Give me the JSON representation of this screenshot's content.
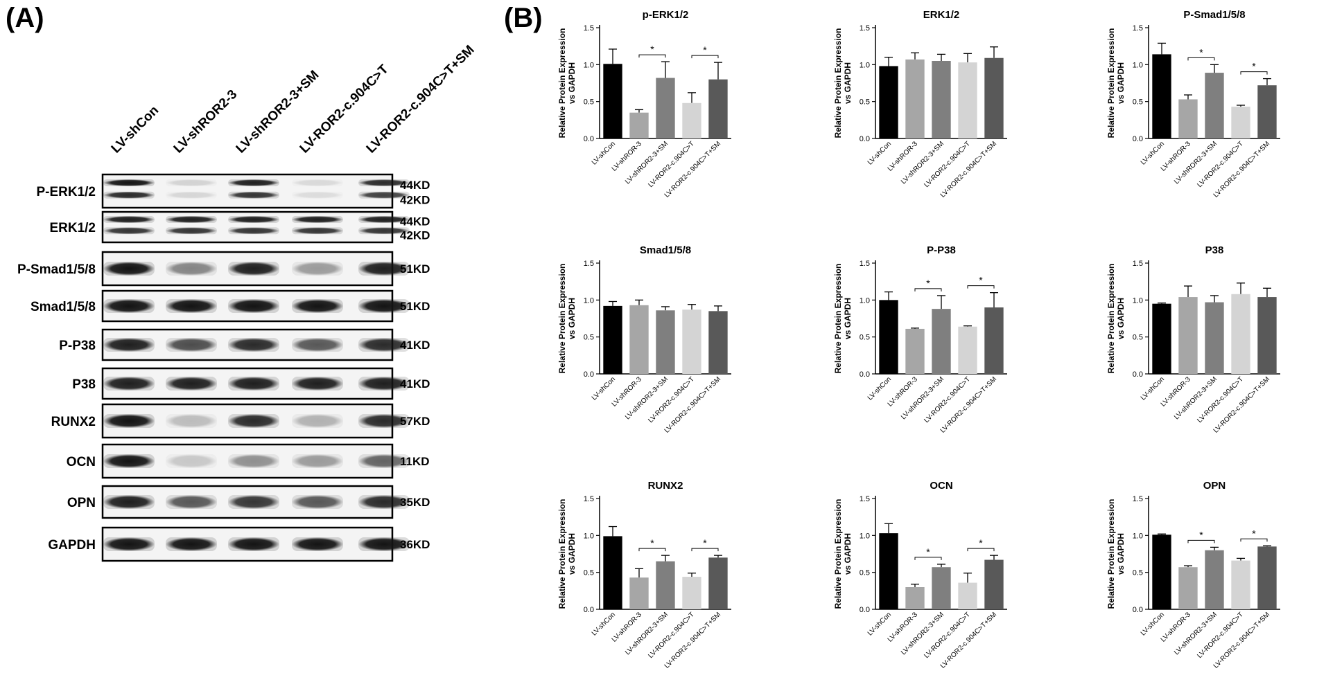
{
  "panel_a": {
    "label": "(A)",
    "lanes": [
      "LV-shCon",
      "LV-shROR2-3",
      "LV-shROR2-3+SM",
      "LV-ROR2-c.904C>T",
      "LV-ROR2-c.904C>T+SM"
    ],
    "rows": [
      {
        "name": "P-ERK1/2",
        "kd": [
          "44KD",
          "42KD"
        ],
        "double": true,
        "intensity": [
          1.0,
          0.15,
          0.95,
          0.12,
          0.9
        ]
      },
      {
        "name": "ERK1/2",
        "kd": [
          "44KD",
          "42KD"
        ],
        "double": true,
        "intensity": [
          0.95,
          0.95,
          0.95,
          0.95,
          0.95
        ]
      },
      {
        "name": "P-Smad1/5/8",
        "kd": [
          "51KD"
        ],
        "double": false,
        "intensity": [
          1.0,
          0.5,
          0.95,
          0.4,
          0.95
        ]
      },
      {
        "name": "Smad1/5/8",
        "kd": [
          "51KD"
        ],
        "double": false,
        "intensity": [
          1.0,
          1.0,
          1.0,
          1.0,
          1.0
        ]
      },
      {
        "name": "P-P38",
        "kd": [
          "41KD"
        ],
        "double": false,
        "intensity": [
          0.95,
          0.75,
          0.9,
          0.7,
          0.9
        ]
      },
      {
        "name": "P38",
        "kd": [
          "41KD"
        ],
        "double": false,
        "intensity": [
          0.95,
          0.95,
          0.95,
          0.95,
          0.95
        ]
      },
      {
        "name": "RUNX2",
        "kd": [
          "57KD"
        ],
        "double": false,
        "intensity": [
          1.0,
          0.25,
          0.9,
          0.3,
          0.9
        ]
      },
      {
        "name": "OCN",
        "kd": [
          "11KD"
        ],
        "double": false,
        "intensity": [
          1.0,
          0.2,
          0.45,
          0.4,
          0.65
        ]
      },
      {
        "name": "OPN",
        "kd": [
          "35KD"
        ],
        "double": false,
        "intensity": [
          0.95,
          0.7,
          0.85,
          0.7,
          0.9
        ]
      },
      {
        "name": "GAPDH",
        "kd": [
          "36KD"
        ],
        "double": false,
        "intensity": [
          1.0,
          1.0,
          1.0,
          1.0,
          1.0
        ]
      }
    ]
  },
  "panel_b": {
    "label": "(B)"
  },
  "chart_data": [
    {
      "type": "bar",
      "title": "p-ERK1/2",
      "ylabel": [
        "Relative Protein Expression",
        "vs GAPDH"
      ],
      "ylim": [
        0,
        1.5
      ],
      "yticks": [
        "0.0",
        "0.5",
        "1.0",
        "1.5"
      ],
      "categories": [
        "LV-shCon",
        "LV-shROR-3",
        "LV-shROR2-3+SM",
        "LV-ROR2-c.904C>T",
        "LV-ROR2-c.904C>T+SM"
      ],
      "values": [
        1.01,
        0.35,
        0.82,
        0.48,
        0.8
      ],
      "errors": [
        0.2,
        0.04,
        0.22,
        0.14,
        0.23
      ],
      "significance": [
        {
          "pair": [
            1,
            2
          ],
          "label": "*"
        },
        {
          "pair": [
            3,
            4
          ],
          "label": "*"
        }
      ]
    },
    {
      "type": "bar",
      "title": "ERK1/2",
      "ylabel": [
        "Relative Protein Expression",
        "vs GAPDH"
      ],
      "ylim": [
        0,
        1.5
      ],
      "yticks": [
        "0.0",
        "0.5",
        "1.0",
        "1.5"
      ],
      "categories": [
        "LV-shCon",
        "LV-shROR-3",
        "LV-shROR2-3+SM",
        "LV-ROR2-c.904C>T",
        "LV-ROR2-c.904C>T+SM"
      ],
      "values": [
        0.98,
        1.07,
        1.05,
        1.03,
        1.09
      ],
      "errors": [
        0.12,
        0.09,
        0.09,
        0.12,
        0.15
      ],
      "significance": []
    },
    {
      "type": "bar",
      "title": "P-Smad1/5/8",
      "ylabel": [
        "Relative Protein Expression",
        "vs GAPDH"
      ],
      "ylim": [
        0,
        1.5
      ],
      "yticks": [
        "0.0",
        "0.5",
        "1.0",
        "1.5"
      ],
      "categories": [
        "LV-shCon",
        "LV-shROR-3",
        "LV-shROR2-3+SM",
        "LV-ROR2-c.904C>T",
        "LV-ROR2-c.904C>T+SM"
      ],
      "values": [
        1.14,
        0.53,
        0.89,
        0.43,
        0.72
      ],
      "errors": [
        0.15,
        0.06,
        0.11,
        0.02,
        0.09
      ],
      "significance": [
        {
          "pair": [
            1,
            2
          ],
          "label": "*"
        },
        {
          "pair": [
            3,
            4
          ],
          "label": "*"
        }
      ]
    },
    {
      "type": "bar",
      "title": "Smad1/5/8",
      "ylabel": [
        "Relative Protein Expression",
        "vs GAPDH"
      ],
      "ylim": [
        0,
        1.5
      ],
      "yticks": [
        "0.0",
        "0.5",
        "1.0",
        "1.5"
      ],
      "categories": [
        "LV-shCon",
        "LV-shROR-3",
        "LV-shROR2-3+SM",
        "LV-ROR2-c.904C>T",
        "LV-ROR2-c.904C>T+SM"
      ],
      "values": [
        0.92,
        0.93,
        0.86,
        0.87,
        0.85
      ],
      "errors": [
        0.06,
        0.07,
        0.05,
        0.07,
        0.07
      ],
      "significance": []
    },
    {
      "type": "bar",
      "title": "P-P38",
      "ylabel": [
        "Relative Protein Expression",
        "vs GAPDH"
      ],
      "ylim": [
        0,
        1.5
      ],
      "yticks": [
        "0.0",
        "0.5",
        "1.0",
        "1.5"
      ],
      "categories": [
        "LV-shCon",
        "LV-shROR-3",
        "LV-shROR2-3+SM",
        "LV-ROR2-c.904C>T",
        "LV-ROR2-c.904C>T+SM"
      ],
      "values": [
        1.0,
        0.61,
        0.88,
        0.64,
        0.9
      ],
      "errors": [
        0.11,
        0.01,
        0.18,
        0.01,
        0.2
      ],
      "significance": [
        {
          "pair": [
            1,
            2
          ],
          "label": "*"
        },
        {
          "pair": [
            3,
            4
          ],
          "label": "*"
        }
      ]
    },
    {
      "type": "bar",
      "title": "P38",
      "ylabel": [
        "Relative Protein Expression",
        "vs GAPDH"
      ],
      "ylim": [
        0,
        1.5
      ],
      "yticks": [
        "0.0",
        "0.5",
        "1.0",
        "1.5"
      ],
      "categories": [
        "LV-shCon",
        "LV-shROR-3",
        "LV-shROR2-3+SM",
        "LV-ROR2-c.904C>T",
        "LV-ROR2-c.904C>T+SM"
      ],
      "values": [
        0.95,
        1.04,
        0.97,
        1.08,
        1.04
      ],
      "errors": [
        0.01,
        0.15,
        0.09,
        0.15,
        0.12
      ],
      "significance": []
    },
    {
      "type": "bar",
      "title": "RUNX2",
      "ylabel": [
        "Relative Protein Expression",
        "vs GAPDH"
      ],
      "ylim": [
        0,
        1.5
      ],
      "yticks": [
        "0.0",
        "0.5",
        "1.0",
        "1.5"
      ],
      "categories": [
        "LV-shCon",
        "LV-shROR-3",
        "LV-shROR2-3+SM",
        "LV-ROR2-c.904C>T",
        "LV-ROR2-c.904C>T+SM"
      ],
      "values": [
        0.99,
        0.43,
        0.65,
        0.44,
        0.7
      ],
      "errors": [
        0.13,
        0.12,
        0.08,
        0.05,
        0.03
      ],
      "significance": [
        {
          "pair": [
            1,
            2
          ],
          "label": "*"
        },
        {
          "pair": [
            3,
            4
          ],
          "label": "*"
        }
      ]
    },
    {
      "type": "bar",
      "title": "OCN",
      "ylabel": [
        "Relative Protein Expression",
        "vs GAPDH"
      ],
      "ylim": [
        0,
        1.5
      ],
      "yticks": [
        "0.0",
        "0.5",
        "1.0",
        "1.5"
      ],
      "categories": [
        "LV-shCon",
        "LV-shROR-3",
        "LV-shROR2-3+SM",
        "LV-ROR2-c.904C>T",
        "LV-ROR2-c.904C>T+SM"
      ],
      "values": [
        1.03,
        0.3,
        0.57,
        0.36,
        0.67
      ],
      "errors": [
        0.13,
        0.04,
        0.04,
        0.13,
        0.06
      ],
      "significance": [
        {
          "pair": [
            1,
            2
          ],
          "label": "*"
        },
        {
          "pair": [
            3,
            4
          ],
          "label": "*"
        }
      ]
    },
    {
      "type": "bar",
      "title": "OPN",
      "ylabel": [
        "Relative Protein Expression",
        "vs GAPDH"
      ],
      "ylim": [
        0,
        1.5
      ],
      "yticks": [
        "0.0",
        "0.5",
        "1.0",
        "1.5"
      ],
      "categories": [
        "LV-shCon",
        "LV-shROR-3",
        "LV-shROR2-3+SM",
        "LV-ROR2-c.904C>T",
        "LV-ROR2-c.904C>T+SM"
      ],
      "values": [
        1.01,
        0.57,
        0.8,
        0.66,
        0.85
      ],
      "errors": [
        0.01,
        0.02,
        0.04,
        0.03,
        0.01
      ],
      "significance": [
        {
          "pair": [
            1,
            2
          ],
          "label": "*"
        },
        {
          "pair": [
            3,
            4
          ],
          "label": "*"
        }
      ]
    }
  ],
  "colors": {
    "bars": [
      "#000000",
      "#a6a6a6",
      "#7f7f7f",
      "#d4d4d4",
      "#595959"
    ],
    "axis": "#000000",
    "band": "#141414",
    "blot_bg": "#f4f4f4"
  }
}
